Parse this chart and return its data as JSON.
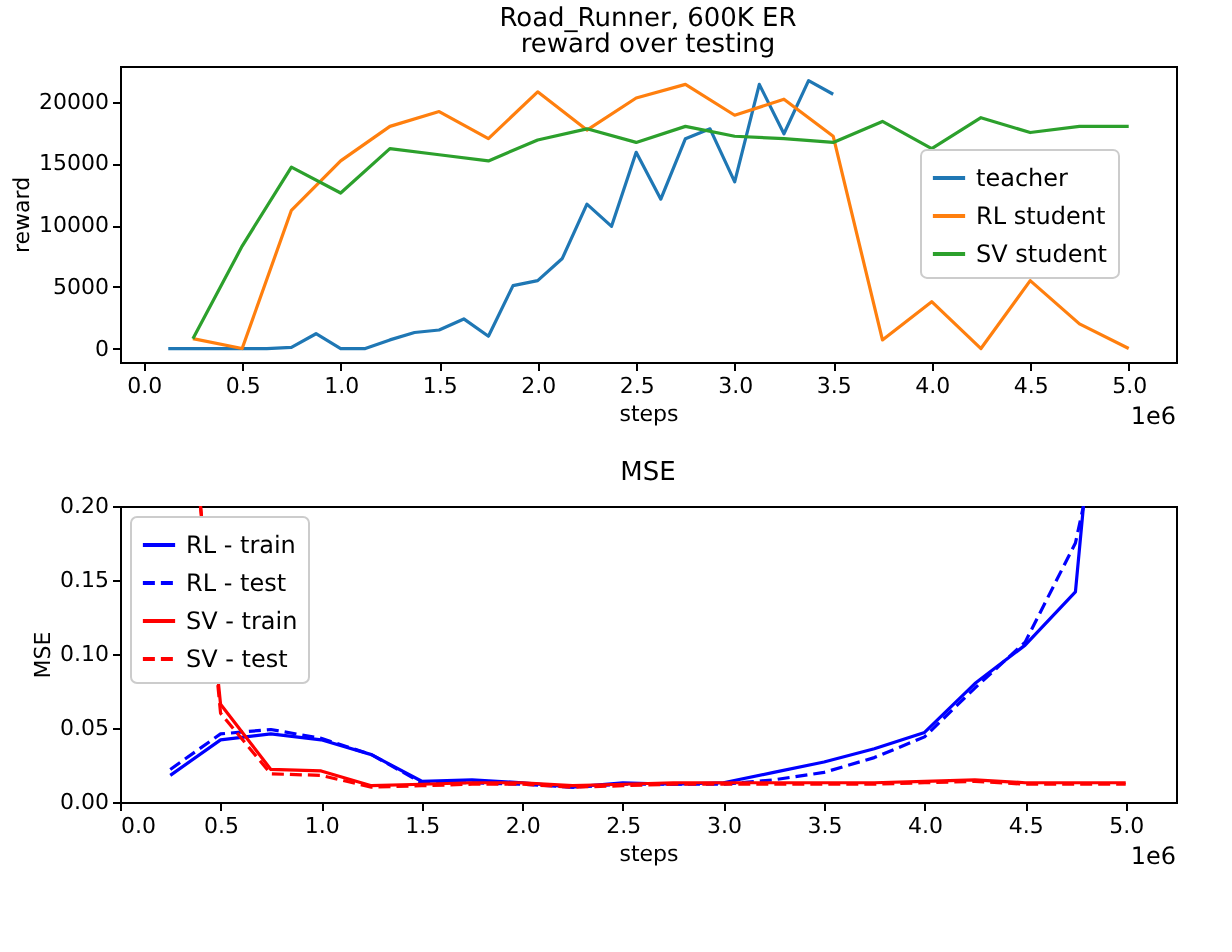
{
  "chart_data": [
    {
      "type": "line",
      "title": "Road_Runner, 600K ER",
      "subtitle": "reward over testing",
      "xlabel": "steps",
      "ylabel": "reward",
      "annotations": [
        "1e6"
      ],
      "grid": false,
      "legend": "right",
      "xlim": [
        -0.12,
        5.24
      ],
      "ylim": [
        -1090,
        22890
      ],
      "xticks": [
        {
          "value": 0,
          "label": "0.0"
        },
        {
          "value": 0.5,
          "label": "0.5"
        },
        {
          "value": 1,
          "label": "1.0"
        },
        {
          "value": 1.5,
          "label": "1.5"
        },
        {
          "value": 2,
          "label": "2.0"
        },
        {
          "value": 2.5,
          "label": "2.5"
        },
        {
          "value": 3,
          "label": "3.0"
        },
        {
          "value": 3.5,
          "label": "3.5"
        },
        {
          "value": 4,
          "label": "4.0"
        },
        {
          "value": 4.5,
          "label": "4.5"
        },
        {
          "value": 5,
          "label": "5.0"
        }
      ],
      "yticks": [
        0,
        5000,
        10000,
        15000,
        20000
      ],
      "series": [
        {
          "name": "teacher",
          "color": "#1f77b4",
          "line_style": "solid",
          "x": [
            0.125,
            0.25,
            0.375,
            0.5,
            0.625,
            0.75,
            0.875,
            1.0,
            1.125,
            1.25,
            1.375,
            1.5,
            1.625,
            1.75,
            1.875,
            2.0,
            2.125,
            2.25,
            2.375,
            2.5,
            2.625,
            2.75,
            2.875,
            3.0,
            3.125,
            3.25,
            3.375,
            3.5
          ],
          "values": [
            0,
            0,
            0,
            0,
            0,
            100,
            1200,
            0,
            0,
            700,
            1300,
            1500,
            2400,
            1000,
            5100,
            5500,
            7300,
            11700,
            9900,
            15900,
            12100,
            17000,
            17800,
            13500,
            21400,
            17400,
            21700,
            20600
          ]
        },
        {
          "name": "RL student",
          "color": "#ff7f0e",
          "line_style": "solid",
          "x": [
            0.25,
            0.5,
            0.75,
            1.0,
            1.25,
            1.5,
            1.75,
            2.0,
            2.25,
            2.5,
            2.75,
            3.0,
            3.25,
            3.5,
            3.75,
            4.0,
            4.25,
            4.5,
            4.75,
            5.0
          ],
          "values": [
            800,
            0,
            11200,
            15200,
            18000,
            19200,
            17000,
            20800,
            17700,
            20300,
            21400,
            18900,
            20200,
            17200,
            700,
            3800,
            0,
            5500,
            2000,
            0
          ]
        },
        {
          "name": "SV student",
          "color": "#2ca02c",
          "line_style": "solid",
          "x": [
            0.25,
            0.5,
            0.75,
            1.0,
            1.25,
            1.5,
            1.75,
            2.0,
            2.25,
            2.5,
            2.75,
            3.0,
            3.25,
            3.5,
            3.75,
            4.0,
            4.25,
            4.5,
            4.75,
            5.0
          ],
          "values": [
            800,
            8300,
            14700,
            12600,
            16200,
            15700,
            15200,
            16900,
            17800,
            16700,
            18000,
            17200,
            17000,
            16700,
            18400,
            16200,
            18700,
            17500,
            18000,
            18000
          ]
        }
      ]
    },
    {
      "type": "line",
      "title": "MSE",
      "xlabel": "steps",
      "ylabel": "MSE",
      "annotations": [
        "1e6"
      ],
      "grid": false,
      "legend": "top left",
      "xlim": [
        0,
        5.25
      ],
      "ylim": [
        0,
        0.2
      ],
      "xticks": [
        {
          "value": 0,
          "label": "0.0"
        },
        {
          "value": 0.5,
          "label": "0.5"
        },
        {
          "value": 1,
          "label": "1.0"
        },
        {
          "value": 1.5,
          "label": "1.5"
        },
        {
          "value": 2,
          "label": "2.0"
        },
        {
          "value": 2.5,
          "label": "2.5"
        },
        {
          "value": 3,
          "label": "3.0"
        },
        {
          "value": 3.5,
          "label": "3.5"
        },
        {
          "value": 4,
          "label": "4.0"
        },
        {
          "value": 4.5,
          "label": "4.5"
        },
        {
          "value": 5,
          "label": "5.0"
        }
      ],
      "yticks": [
        {
          "value": 0,
          "label": "0.00"
        },
        {
          "value": 0.05,
          "label": "0.05"
        },
        {
          "value": 0.1,
          "label": "0.10"
        },
        {
          "value": 0.15,
          "label": "0.15"
        },
        {
          "value": 0.2,
          "label": "0.20"
        }
      ],
      "series": [
        {
          "name": "RL - train",
          "color": "#0000ff",
          "line_style": "solid",
          "x": [
            0.25,
            0.5,
            0.75,
            1.0,
            1.25,
            1.5,
            1.75,
            2.0,
            2.25,
            2.5,
            2.75,
            3.0,
            3.25,
            3.5,
            3.75,
            4.0,
            4.25,
            4.5,
            4.75,
            4.79
          ],
          "values": [
            0.018,
            0.042,
            0.046,
            0.042,
            0.032,
            0.014,
            0.015,
            0.013,
            0.01,
            0.013,
            0.012,
            0.013,
            0.02,
            0.027,
            0.036,
            0.047,
            0.08,
            0.106,
            0.142,
            0.2
          ]
        },
        {
          "name": "RL - test",
          "color": "#0000ff",
          "line_style": "dashed",
          "x": [
            0.25,
            0.5,
            0.75,
            1.0,
            1.25,
            1.5,
            1.75,
            2.0,
            2.25,
            2.5,
            2.75,
            3.0,
            3.25,
            3.5,
            3.75,
            4.0,
            4.25,
            4.5,
            4.75,
            4.79
          ],
          "values": [
            0.022,
            0.046,
            0.049,
            0.043,
            0.032,
            0.013,
            0.013,
            0.012,
            0.01,
            0.012,
            0.012,
            0.012,
            0.015,
            0.02,
            0.03,
            0.044,
            0.077,
            0.108,
            0.175,
            0.2
          ]
        },
        {
          "name": "SV - train",
          "color": "#ff0000",
          "line_style": "solid",
          "x": [
            0.4,
            0.5,
            0.75,
            1.0,
            1.25,
            1.5,
            1.75,
            2.0,
            2.25,
            2.5,
            2.75,
            3.0,
            3.25,
            3.5,
            3.75,
            4.0,
            4.25,
            4.5,
            4.75,
            5.0
          ],
          "values": [
            0.2,
            0.066,
            0.022,
            0.021,
            0.011,
            0.012,
            0.013,
            0.013,
            0.011,
            0.012,
            0.013,
            0.013,
            0.013,
            0.013,
            0.013,
            0.014,
            0.015,
            0.013,
            0.013,
            0.013
          ]
        },
        {
          "name": "SV - test",
          "color": "#ff0000",
          "line_style": "dashed",
          "x": [
            0.4,
            0.5,
            0.75,
            1.0,
            1.25,
            1.5,
            1.75,
            2.0,
            2.25,
            2.5,
            2.75,
            3.0,
            3.25,
            3.5,
            3.75,
            4.0,
            4.25,
            4.5,
            4.75,
            5.0
          ],
          "values": [
            0.2,
            0.06,
            0.019,
            0.018,
            0.01,
            0.011,
            0.012,
            0.012,
            0.01,
            0.011,
            0.012,
            0.012,
            0.012,
            0.012,
            0.012,
            0.013,
            0.014,
            0.012,
            0.012,
            0.012
          ]
        }
      ]
    }
  ]
}
